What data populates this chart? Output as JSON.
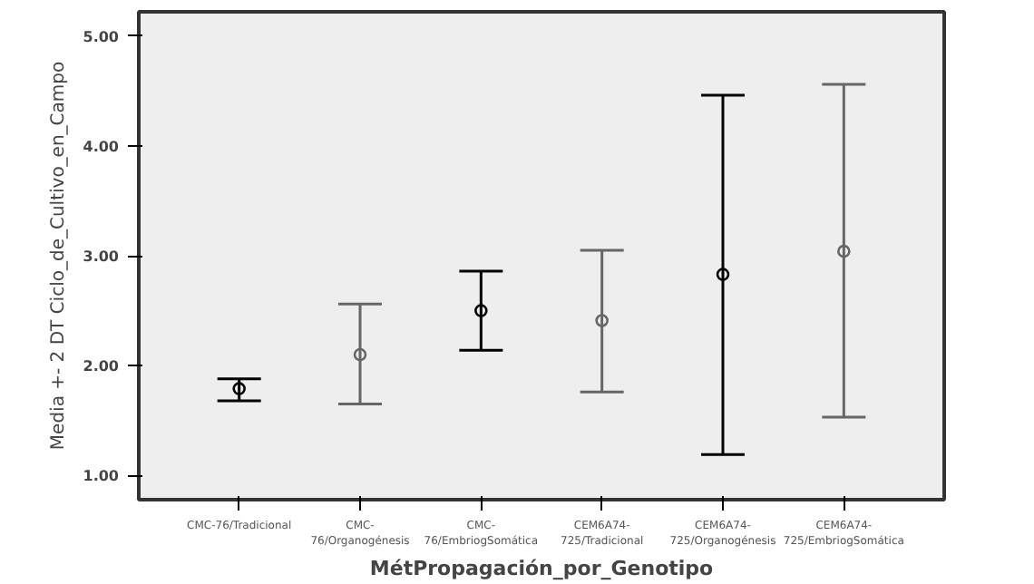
{
  "chart_data": {
    "type": "scatter",
    "xlabel": "MétPropagación_por_Genotipo",
    "ylabel": "Media +- 2 DT Ciclo_de_Cultivo_en_Campo",
    "categories": [
      "CMC-76/Tradicional",
      "CMC-76/Organogénesis",
      "CMC-76/EmbriogSomática",
      "CEM6A74-725/Tradicional",
      "CEM6A74-725/Organogénesis",
      "CEM6A74-725/EmbriogSomática"
    ],
    "values": [
      1.79,
      2.1,
      2.5,
      2.41,
      2.83,
      3.04
    ],
    "errors": [
      [
        1.68,
        1.88
      ],
      [
        1.65,
        2.56
      ],
      [
        2.14,
        2.86
      ],
      [
        1.76,
        3.05
      ],
      [
        1.19,
        4.46
      ],
      [
        1.53,
        4.56
      ]
    ],
    "colors": [
      "#000000",
      "#666666",
      "#000000",
      "#666666",
      "#000000",
      "#666666"
    ],
    "marker": "circle",
    "ylim": [
      0.78,
      5.22
    ],
    "yticks": [
      {
        "value": 1,
        "label": "1.00"
      },
      {
        "value": 2,
        "label": "2.00"
      },
      {
        "value": 3,
        "label": "3.00"
      },
      {
        "value": 4,
        "label": "4.00"
      },
      {
        "value": 5,
        "label": "5.00"
      }
    ],
    "grid": false,
    "legend": false
  }
}
